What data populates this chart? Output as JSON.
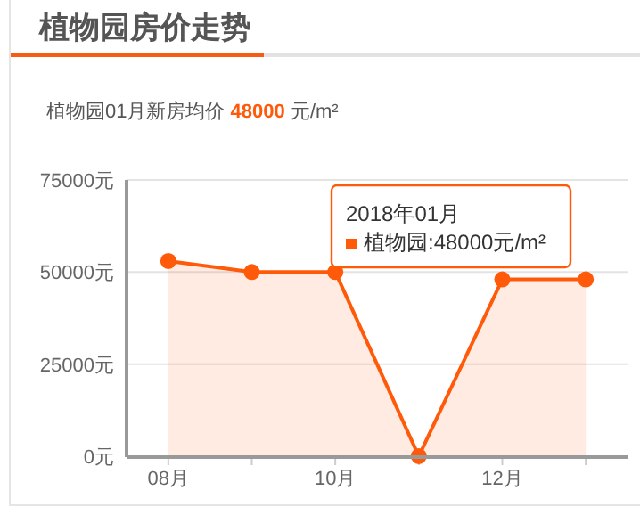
{
  "chart_data": {
    "type": "area",
    "title": "植物园房价走势",
    "subtitle": "植物园01月新房均价 48000 元/m²",
    "categories": [
      "08月",
      null,
      "10月",
      null,
      "12月",
      null
    ],
    "series": [
      {
        "color": "#ff5a0a",
        "values": [
          53000,
          50000,
          50000,
          0,
          48000,
          48000
        ]
      }
    ],
    "ylim": [
      0,
      75000
    ],
    "yticks": [
      {
        "value": 0,
        "label": "0元"
      },
      {
        "value": 25000,
        "label": "25000元"
      },
      {
        "value": 50000,
        "label": "50000元"
      },
      {
        "value": 75000,
        "label": "75000元"
      }
    ],
    "grid": "y",
    "marker": "circle",
    "line_style": "solid",
    "annotations": [
      "2018年01月",
      "植物园:48000元/m²"
    ]
  }
}
